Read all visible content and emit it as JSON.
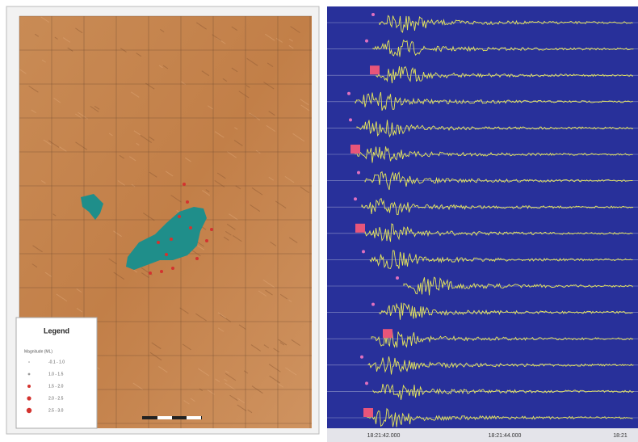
{
  "legend": {
    "title": "Legend",
    "subtitle": "Magnitude (ML)",
    "items": [
      "-0.1 - 1.0",
      "1.0 - 1.5",
      "1.5 - 2.0",
      "2.0 - 2.5",
      "2.5 - 3.0"
    ]
  },
  "time_axis": {
    "labels": [
      "18:21:42.000",
      "18:21:44.000",
      "18:21"
    ]
  }
}
